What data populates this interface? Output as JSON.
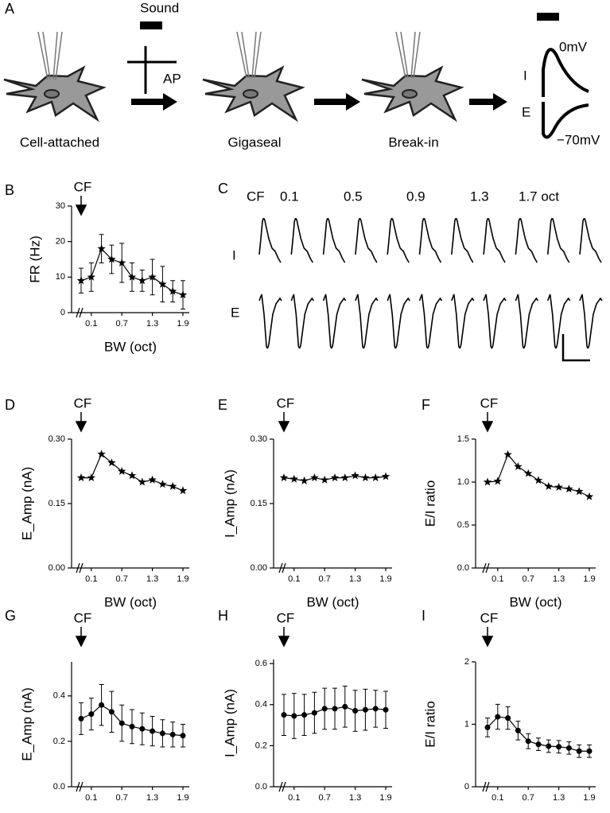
{
  "panel_a": {
    "label": "A",
    "sound": "Sound",
    "ap": "AP",
    "steps": [
      "Cell-attached",
      "Gigaseal",
      "Break-in"
    ],
    "trace_labels": [
      "I",
      "E"
    ],
    "voltages": [
      "0mV",
      "−70mV"
    ]
  },
  "panel_c": {
    "label": "C",
    "header": [
      "CF",
      "0.1",
      "0.5",
      "0.9",
      "1.3",
      "1.7 oct"
    ],
    "rows": [
      "I",
      "E"
    ]
  },
  "chart_data": [
    {
      "type": "line",
      "label": "B",
      "annotation": "CF",
      "xlabel": "BW (oct)",
      "ylabel": "FR (Hz)",
      "marker": "star",
      "color": "#000000",
      "categories": [
        null,
        "0.1",
        null,
        null,
        "0.7",
        null,
        null,
        "1.3",
        null,
        null,
        "1.9"
      ],
      "values": [
        9,
        10,
        18,
        15,
        14,
        10,
        9,
        10,
        8,
        6,
        5
      ],
      "errors": [
        3.5,
        4,
        4,
        4,
        5.5,
        4,
        3,
        5,
        5,
        3,
        4
      ],
      "ylim": [
        0,
        30
      ],
      "yticks": [
        0,
        10,
        20,
        30
      ]
    },
    {
      "type": "line",
      "label": "D",
      "annotation": "CF",
      "xlabel": "BW (oct)",
      "ylabel": "E_Amp (nA)",
      "marker": "star",
      "color": "#000000",
      "categories": [
        null,
        "0.1",
        null,
        null,
        "0.7",
        null,
        null,
        "1.3",
        null,
        null,
        "1.9"
      ],
      "values": [
        0.21,
        0.21,
        0.265,
        0.245,
        0.225,
        0.215,
        0.2,
        0.205,
        0.195,
        0.19,
        0.18
      ],
      "ylim": [
        0,
        0.3
      ],
      "yticks": [
        {
          "value": 0,
          "label": "0.00"
        },
        {
          "value": 0.15,
          "label": "0.15"
        },
        {
          "value": 0.3,
          "label": "0.30"
        }
      ]
    },
    {
      "type": "line",
      "label": "E",
      "annotation": "CF",
      "xlabel": "BW (oct)",
      "ylabel": "I_Amp (nA)",
      "marker": "star",
      "color": "#000000",
      "categories": [
        null,
        "0.1",
        null,
        null,
        "0.7",
        null,
        null,
        "1.3",
        null,
        null,
        "1.9"
      ],
      "values": [
        0.21,
        0.207,
        0.203,
        0.21,
        0.205,
        0.21,
        0.21,
        0.215,
        0.21,
        0.21,
        0.213
      ],
      "ylim": [
        0,
        0.3
      ],
      "yticks": [
        {
          "value": 0,
          "label": "0.00"
        },
        {
          "value": 0.15,
          "label": "0.15"
        },
        {
          "value": 0.3,
          "label": "0.30"
        }
      ]
    },
    {
      "type": "line",
      "label": "F",
      "annotation": "CF",
      "xlabel": "BW (oct)",
      "ylabel": "E/I ratio",
      "marker": "star",
      "color": "#000000",
      "categories": [
        null,
        "0.1",
        null,
        null,
        "0.7",
        null,
        null,
        "1.3",
        null,
        null,
        "1.9"
      ],
      "values": [
        1.0,
        1.01,
        1.32,
        1.18,
        1.1,
        1.02,
        0.95,
        0.94,
        0.92,
        0.89,
        0.83
      ],
      "ylim": [
        0,
        1.5
      ],
      "yticks": [
        {
          "value": 0,
          "label": "0.0"
        },
        {
          "value": 0.5,
          "label": "0.5"
        },
        {
          "value": 1,
          "label": "1.0"
        },
        {
          "value": 1.5,
          "label": "1.5"
        }
      ]
    },
    {
      "type": "line",
      "label": "G",
      "annotation": "CF",
      "xlabel": "BW (oct)",
      "ylabel": "E_Amp (nA)",
      "marker": "circle",
      "color": "#000000",
      "categories": [
        null,
        "0.1",
        null,
        null,
        "0.7",
        null,
        null,
        "1.3",
        null,
        null,
        "1.9"
      ],
      "values": [
        0.3,
        0.32,
        0.36,
        0.33,
        0.28,
        0.265,
        0.255,
        0.245,
        0.235,
        0.23,
        0.225
      ],
      "errors": [
        0.07,
        0.07,
        0.09,
        0.09,
        0.08,
        0.075,
        0.07,
        0.065,
        0.06,
        0.055,
        0.05
      ],
      "ylim": [
        0,
        0.55
      ],
      "yticks": [
        {
          "value": 0,
          "label": "0.0"
        },
        {
          "value": 0.2,
          "label": "0.2"
        },
        {
          "value": 0.4,
          "label": "0.4"
        }
      ]
    },
    {
      "type": "line",
      "label": "H",
      "annotation": "CF",
      "xlabel": "BW (oct)",
      "ylabel": "I_Amp (nA)",
      "marker": "circle",
      "color": "#000000",
      "categories": [
        null,
        "0.1",
        null,
        null,
        "0.7",
        null,
        null,
        "1.3",
        null,
        null,
        "1.9"
      ],
      "values": [
        0.35,
        0.345,
        0.35,
        0.36,
        0.38,
        0.38,
        0.39,
        0.37,
        0.375,
        0.38,
        0.375
      ],
      "errors": [
        0.1,
        0.11,
        0.1,
        0.1,
        0.1,
        0.1,
        0.1,
        0.1,
        0.1,
        0.09,
        0.09
      ],
      "ylim": [
        0,
        0.62
      ],
      "yticks": [
        {
          "value": 0,
          "label": "0.0"
        },
        {
          "value": 0.2,
          "label": "0.2"
        },
        {
          "value": 0.4,
          "label": "0.4"
        },
        {
          "value": 0.6,
          "label": "0.6"
        }
      ]
    },
    {
      "type": "line",
      "label": "I",
      "annotation": "CF",
      "xlabel": "BW (oct)",
      "ylabel": "E/I ratio",
      "marker": "circle",
      "color": "#000000",
      "categories": [
        null,
        "0.1",
        null,
        null,
        "0.7",
        null,
        null,
        "1.3",
        null,
        null,
        "1.9"
      ],
      "values": [
        0.95,
        1.12,
        1.1,
        0.9,
        0.73,
        0.68,
        0.65,
        0.64,
        0.62,
        0.57,
        0.57
      ],
      "errors": [
        0.15,
        0.2,
        0.18,
        0.15,
        0.12,
        0.1,
        0.1,
        0.1,
        0.1,
        0.1,
        0.1
      ],
      "ylim": [
        0,
        2
      ],
      "yticks": [
        0,
        1,
        2
      ]
    }
  ]
}
